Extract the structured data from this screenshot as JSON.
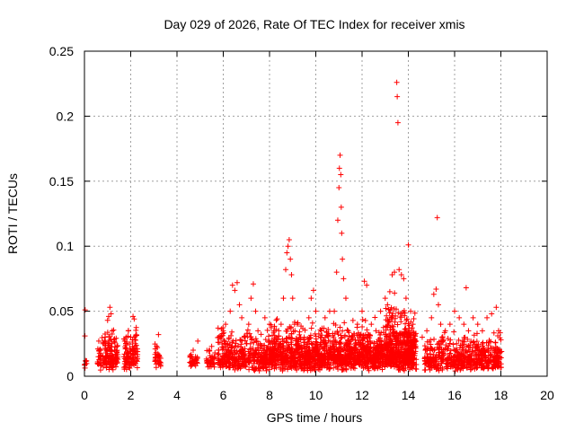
{
  "chart_data": {
    "type": "scatter",
    "title": "Day 029 of 2026, Rate Of TEC Index for receiver xmis",
    "xlabel": "GPS time / hours",
    "ylabel": "ROTI / TECUs",
    "xlim": [
      0,
      20
    ],
    "ylim": [
      0,
      0.25
    ],
    "xticks": [
      0,
      2,
      4,
      6,
      8,
      10,
      12,
      14,
      16,
      18,
      20
    ],
    "yticks": [
      0,
      0.05,
      0.1,
      0.15,
      0.2,
      0.25
    ],
    "xtick_labels": [
      "0",
      "2",
      "4",
      "6",
      "8",
      "10",
      "12",
      "14",
      "16",
      "18",
      "20"
    ],
    "ytick_labels": [
      "0",
      "0.05",
      "0.1",
      "0.15",
      "0.2",
      "0.25"
    ],
    "grid": true,
    "marker": "+",
    "color": "#ff0000",
    "series": [
      {
        "name": "ROTI",
        "points": [
          [
            0.0,
            0.009
          ],
          [
            0.02,
            0.031
          ],
          [
            0.05,
            0.012
          ],
          [
            0.03,
            0.051
          ],
          [
            0.6,
            0.015
          ],
          [
            0.7,
            0.02
          ],
          [
            0.8,
            0.025
          ],
          [
            0.9,
            0.03
          ],
          [
            1.0,
            0.043
          ],
          [
            1.05,
            0.046
          ],
          [
            1.1,
            0.053
          ],
          [
            1.15,
            0.048
          ],
          [
            1.2,
            0.035
          ],
          [
            1.3,
            0.02
          ],
          [
            1.35,
            0.012
          ],
          [
            1.4,
            0.018
          ],
          [
            1.7,
            0.015
          ],
          [
            1.8,
            0.03
          ],
          [
            1.9,
            0.035
          ],
          [
            2.0,
            0.03
          ],
          [
            2.1,
            0.046
          ],
          [
            2.15,
            0.044
          ],
          [
            2.2,
            0.025
          ],
          [
            2.25,
            0.012
          ],
          [
            3.1,
            0.012
          ],
          [
            3.15,
            0.022
          ],
          [
            3.2,
            0.032
          ],
          [
            3.25,
            0.015
          ],
          [
            4.6,
            0.01
          ],
          [
            4.7,
            0.02
          ],
          [
            4.8,
            0.015
          ],
          [
            4.9,
            0.027
          ],
          [
            5.3,
            0.01
          ],
          [
            5.4,
            0.02
          ],
          [
            5.5,
            0.023
          ],
          [
            5.6,
            0.015
          ],
          [
            5.8,
            0.02
          ],
          [
            5.9,
            0.03
          ],
          [
            6.0,
            0.035
          ],
          [
            6.1,
            0.04
          ],
          [
            6.2,
            0.025
          ],
          [
            6.3,
            0.05
          ],
          [
            6.4,
            0.07
          ],
          [
            6.5,
            0.066
          ],
          [
            6.6,
            0.072
          ],
          [
            6.7,
            0.055
          ],
          [
            6.8,
            0.045
          ],
          [
            6.9,
            0.03
          ],
          [
            7.0,
            0.025
          ],
          [
            7.1,
            0.04
          ],
          [
            7.2,
            0.06
          ],
          [
            7.3,
            0.071
          ],
          [
            7.4,
            0.05
          ],
          [
            7.5,
            0.035
          ],
          [
            7.6,
            0.025
          ],
          [
            7.8,
            0.045
          ],
          [
            8.0,
            0.04
          ],
          [
            8.2,
            0.035
          ],
          [
            8.5,
            0.04
          ],
          [
            8.6,
            0.06
          ],
          [
            8.7,
            0.082
          ],
          [
            8.75,
            0.095
          ],
          [
            8.8,
            0.1
          ],
          [
            8.85,
            0.105
          ],
          [
            8.9,
            0.09
          ],
          [
            8.95,
            0.078
          ],
          [
            9.0,
            0.06
          ],
          [
            9.1,
            0.035
          ],
          [
            9.2,
            0.04
          ],
          [
            9.5,
            0.03
          ],
          [
            9.7,
            0.045
          ],
          [
            9.8,
            0.06
          ],
          [
            9.9,
            0.066
          ],
          [
            10.0,
            0.05
          ],
          [
            10.2,
            0.03
          ],
          [
            10.4,
            0.045
          ],
          [
            10.6,
            0.05
          ],
          [
            10.8,
            0.05
          ],
          [
            10.9,
            0.08
          ],
          [
            10.95,
            0.12
          ],
          [
            11.0,
            0.145
          ],
          [
            11.02,
            0.16
          ],
          [
            11.05,
            0.17
          ],
          [
            11.08,
            0.155
          ],
          [
            11.1,
            0.13
          ],
          [
            11.12,
            0.11
          ],
          [
            11.15,
            0.09
          ],
          [
            11.2,
            0.075
          ],
          [
            11.3,
            0.06
          ],
          [
            11.4,
            0.035
          ],
          [
            11.6,
            0.03
          ],
          [
            11.8,
            0.04
          ],
          [
            12.0,
            0.05
          ],
          [
            12.1,
            0.073
          ],
          [
            12.2,
            0.07
          ],
          [
            12.4,
            0.04
          ],
          [
            12.6,
            0.035
          ],
          [
            12.8,
            0.05
          ],
          [
            13.0,
            0.06
          ],
          [
            13.1,
            0.055
          ],
          [
            13.2,
            0.065
          ],
          [
            13.3,
            0.078
          ],
          [
            13.4,
            0.08
          ],
          [
            13.5,
            0.226
          ],
          [
            13.52,
            0.215
          ],
          [
            13.55,
            0.195
          ],
          [
            13.6,
            0.082
          ],
          [
            13.7,
            0.078
          ],
          [
            13.8,
            0.075
          ],
          [
            13.9,
            0.06
          ],
          [
            14.0,
            0.101
          ],
          [
            14.1,
            0.05
          ],
          [
            14.2,
            0.04
          ],
          [
            14.6,
            0.03
          ],
          [
            14.8,
            0.035
          ],
          [
            15.0,
            0.045
          ],
          [
            15.1,
            0.063
          ],
          [
            15.2,
            0.067
          ],
          [
            15.25,
            0.122
          ],
          [
            15.3,
            0.055
          ],
          [
            15.4,
            0.04
          ],
          [
            15.6,
            0.035
          ],
          [
            15.8,
            0.04
          ],
          [
            16.0,
            0.05
          ],
          [
            16.2,
            0.045
          ],
          [
            16.4,
            0.04
          ],
          [
            16.5,
            0.068
          ],
          [
            16.6,
            0.035
          ],
          [
            16.8,
            0.045
          ],
          [
            17.0,
            0.04
          ],
          [
            17.2,
            0.035
          ],
          [
            17.4,
            0.045
          ],
          [
            17.6,
            0.048
          ],
          [
            17.8,
            0.053
          ],
          [
            17.9,
            0.035
          ],
          [
            18.0,
            0.028
          ]
        ],
        "dense_bands": [
          {
            "x": [
              0.0,
              0.1
            ],
            "y": [
              0.005,
              0.015
            ],
            "n": 6
          },
          {
            "x": [
              0.55,
              1.45
            ],
            "y": [
              0.004,
              0.032
            ],
            "n": 140
          },
          {
            "x": [
              1.7,
              2.3
            ],
            "y": [
              0.004,
              0.035
            ],
            "n": 100
          },
          {
            "x": [
              3.05,
              3.3
            ],
            "y": [
              0.006,
              0.022
            ],
            "n": 30
          },
          {
            "x": [
              4.55,
              4.95
            ],
            "y": [
              0.006,
              0.02
            ],
            "n": 30
          },
          {
            "x": [
              5.25,
              5.65
            ],
            "y": [
              0.006,
              0.022
            ],
            "n": 35
          },
          {
            "x": [
              5.75,
              14.35
            ],
            "y": [
              0.004,
              0.032
            ],
            "n": 1500
          },
          {
            "x": [
              8.0,
              14.3
            ],
            "y": [
              0.008,
              0.04
            ],
            "n": 500
          },
          {
            "x": [
              13.0,
              14.3
            ],
            "y": [
              0.01,
              0.055
            ],
            "n": 200
          },
          {
            "x": [
              14.7,
              18.05
            ],
            "y": [
              0.004,
              0.03
            ],
            "n": 550
          }
        ]
      }
    ]
  }
}
